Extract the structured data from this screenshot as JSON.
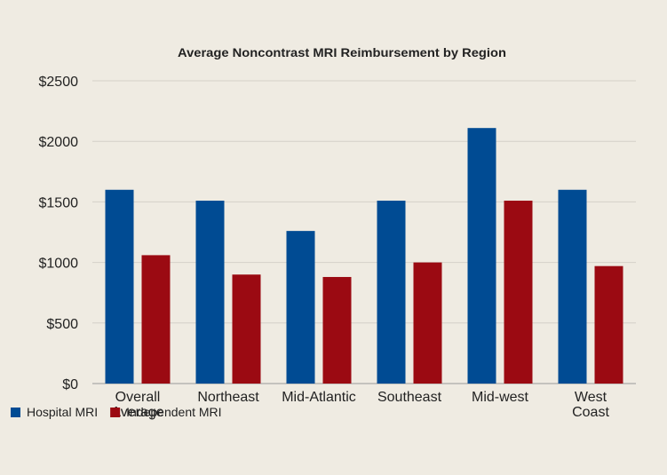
{
  "chart_data": {
    "type": "bar",
    "title": "Average Noncontrast MRI Reimbursement by Region",
    "categories": [
      "Overall Average",
      "Northeast",
      "Mid-Atlantic",
      "Southeast",
      "Mid-west",
      "West Coast"
    ],
    "series": [
      {
        "name": "Hospital MRI",
        "color": "#004b93",
        "values": [
          1600,
          1510,
          1260,
          1510,
          2110,
          1600
        ]
      },
      {
        "name": "Independent MRI",
        "color": "#9b0a12",
        "values": [
          1060,
          900,
          880,
          1000,
          1510,
          970
        ]
      }
    ],
    "ylim": [
      0,
      2500
    ],
    "yticks": [
      {
        "value": 0,
        "label": "$0"
      },
      {
        "value": 500,
        "label": "$500"
      },
      {
        "value": 1000,
        "label": "$1000"
      },
      {
        "value": 1500,
        "label": "$1500"
      },
      {
        "value": 2000,
        "label": "$2000"
      },
      {
        "value": 2500,
        "label": "$2500"
      }
    ],
    "grid": true,
    "legend": "bottom-left"
  }
}
